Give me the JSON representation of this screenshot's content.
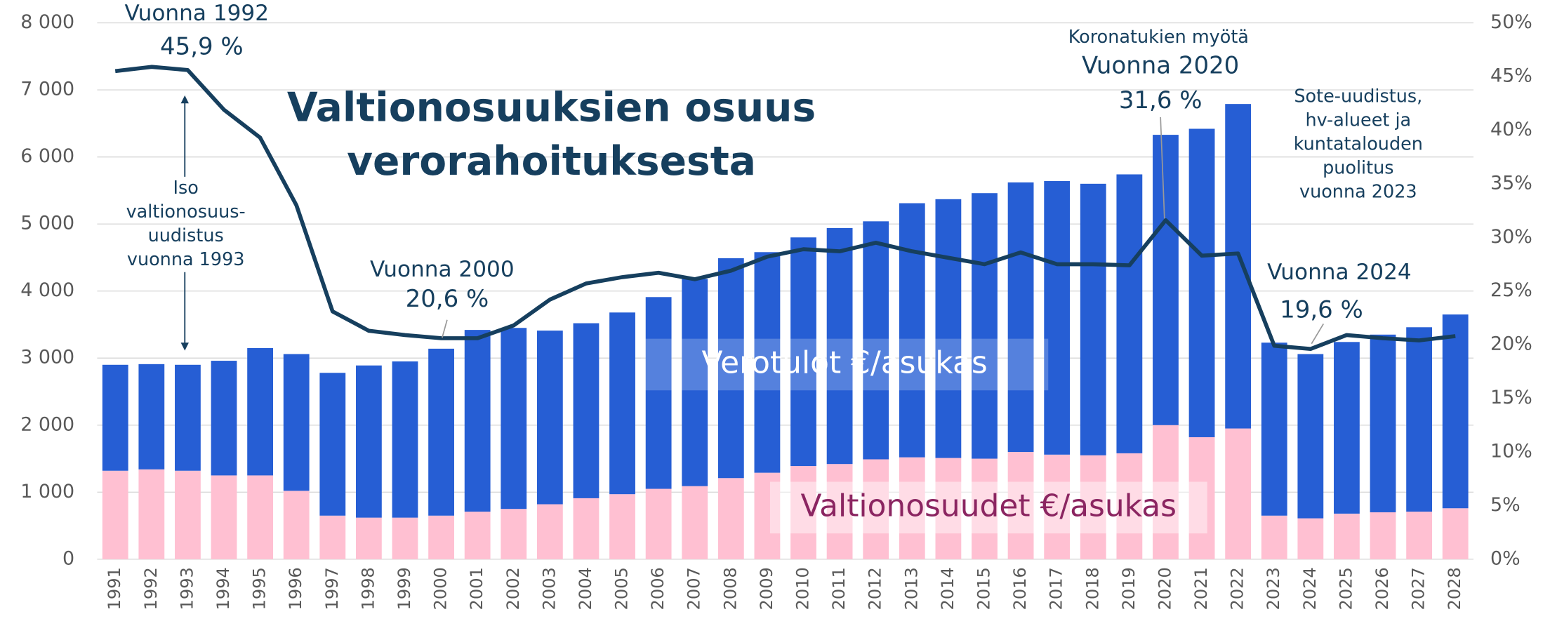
{
  "chart_data": {
    "type": "bar",
    "title": "Valtionosuuksien osuus verorahoituksesta",
    "stacked": true,
    "categories": [
      "1991",
      "1992",
      "1993",
      "1994",
      "1995",
      "1996",
      "1997",
      "1998",
      "1999",
      "2000",
      "2001",
      "2002",
      "2003",
      "2004",
      "2005",
      "2006",
      "2007",
      "2008",
      "2009",
      "2010",
      "2011",
      "2012",
      "2013",
      "2014",
      "2015",
      "2016",
      "2017",
      "2018",
      "2019",
      "2020",
      "2021",
      "2022",
      "2023",
      "2024",
      "2025",
      "2026",
      "2027",
      "2028"
    ],
    "series": [
      {
        "name": "Valtionosuudet €/asukas",
        "color": "#ffc0d2",
        "values": [
          1320,
          1340,
          1320,
          1250,
          1250,
          1020,
          650,
          620,
          620,
          650,
          710,
          750,
          820,
          910,
          970,
          1050,
          1090,
          1210,
          1290,
          1390,
          1420,
          1490,
          1520,
          1510,
          1500,
          1600,
          1560,
          1550,
          1580,
          2000,
          1820,
          1950,
          650,
          610,
          680,
          700,
          710,
          760
        ]
      },
      {
        "name": "Verotulot €/asukas",
        "color": "#265ed4",
        "values": [
          1580,
          1570,
          1580,
          1710,
          1900,
          2040,
          2130,
          2270,
          2330,
          2490,
          2710,
          2700,
          2590,
          2610,
          2710,
          2860,
          3090,
          3280,
          3290,
          3410,
          3520,
          3550,
          3790,
          3860,
          3960,
          4020,
          4080,
          4050,
          4160,
          4330,
          4600,
          4840,
          2580,
          2450,
          2560,
          2650,
          2750,
          2890
        ]
      },
      {
        "type": "line",
        "axis": "y2",
        "color": "#163f5e",
        "values": [
          45.5,
          45.9,
          45.6,
          41.9,
          39.3,
          33.0,
          23.1,
          21.3,
          20.9,
          20.6,
          20.6,
          21.8,
          24.2,
          25.7,
          26.3,
          26.7,
          26.1,
          26.9,
          28.2,
          28.9,
          28.7,
          29.5,
          28.7,
          28.1,
          27.5,
          28.6,
          27.5,
          27.5,
          27.4,
          31.6,
          28.3,
          28.5,
          19.9,
          19.6,
          20.9,
          20.6,
          20.4,
          20.8
        ],
        "value_labels": [
          null,
          "45,9 %",
          null,
          null,
          null,
          null,
          null,
          null,
          null,
          "20,6 %",
          null,
          null,
          null,
          null,
          null,
          null,
          null,
          null,
          null,
          null,
          null,
          null,
          null,
          null,
          null,
          null,
          null,
          null,
          null,
          "31,6 %",
          null,
          null,
          null,
          "19,6 %",
          null,
          null,
          null,
          null
        ]
      }
    ],
    "ylim": [
      0,
      8000
    ],
    "yticks": [
      0,
      {
        "value": 1000,
        "label": "1 000"
      },
      {
        "value": 2000,
        "label": "2 000"
      },
      {
        "value": 3000,
        "label": "3 000"
      },
      {
        "value": 4000,
        "label": "4 000"
      },
      {
        "value": 5000,
        "label": "5 000"
      },
      {
        "value": 6000,
        "label": "6 000"
      },
      {
        "value": 7000,
        "label": "7 000"
      },
      {
        "value": 8000,
        "label": "8 000"
      }
    ],
    "y2lim": [
      0,
      50
    ],
    "y2ticks": [
      {
        "value": 0,
        "label": "0%"
      },
      {
        "value": 5,
        "label": "5%"
      },
      {
        "value": 10,
        "label": "10%"
      },
      {
        "value": 15,
        "label": "15%"
      },
      {
        "value": 20,
        "label": "20%"
      },
      {
        "value": 25,
        "label": "25%"
      },
      {
        "value": 30,
        "label": "30%"
      },
      {
        "value": 35,
        "label": "35%"
      },
      {
        "value": 40,
        "label": "40%"
      },
      {
        "value": 45,
        "label": "45%"
      },
      {
        "value": 50,
        "label": "50%"
      }
    ],
    "grid": true,
    "annotations": [
      "Vuonna 1992",
      "Vuonna 2000",
      "Koronatukien myötä",
      "Vuonna 2020",
      "Vuonna 2024",
      [
        "Iso",
        "valtionosuus-",
        "uudistus",
        "vuonna 1993"
      ],
      [
        "Sote-uudistus,",
        "hv-alueet ja",
        "kuntatalouden",
        "puolitus",
        "vuonna 2023"
      ]
    ]
  }
}
